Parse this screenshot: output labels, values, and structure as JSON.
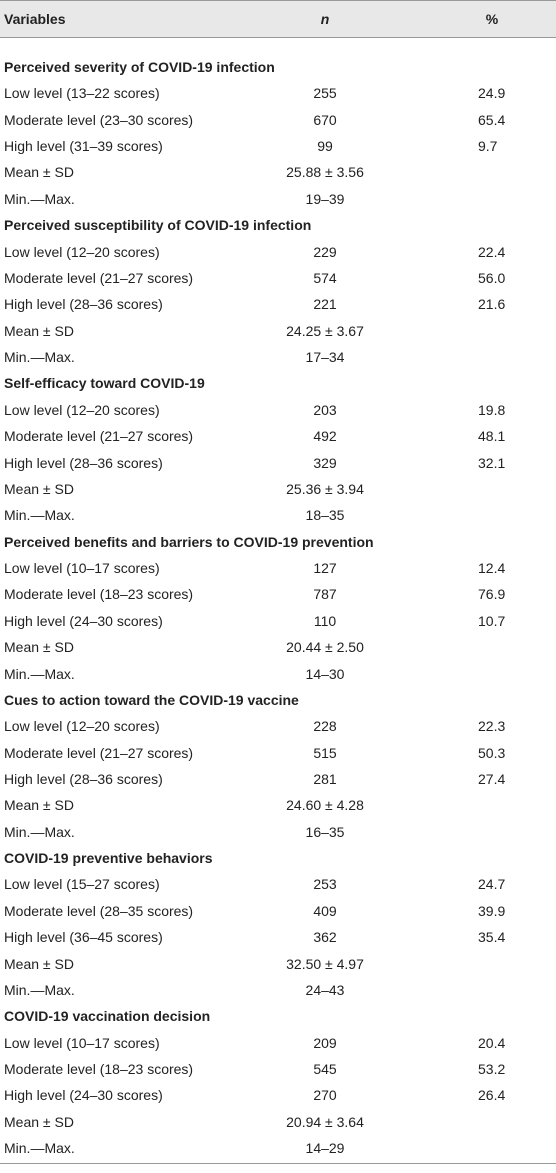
{
  "table": {
    "header": [
      "Variables",
      "n",
      "%"
    ],
    "sections": [
      {
        "title": "Perceived severity of COVID-19 infection",
        "rows": [
          [
            "Low level (13–22 scores)",
            "255",
            "24.9"
          ],
          [
            "Moderate level (23–30 scores)",
            "670",
            "65.4"
          ],
          [
            "High level (31–39 scores)",
            "99",
            "9.7"
          ],
          [
            "Mean ± SD",
            "25.88 ± 3.56"
          ],
          [
            "Min.—Max.",
            "19–39"
          ]
        ]
      },
      {
        "title": "Perceived susceptibility of COVID-19 infection",
        "rows": [
          [
            "Low level (12–20 scores)",
            "229",
            "22.4"
          ],
          [
            "Moderate level (21–27 scores)",
            "574",
            "56.0"
          ],
          [
            "High level (28–36 scores)",
            "221",
            "21.6"
          ],
          [
            "Mean ± SD",
            "24.25 ± 3.67"
          ],
          [
            "Min.—Max.",
            "17–34"
          ]
        ]
      },
      {
        "title": "Self-efficacy toward COVID-19",
        "rows": [
          [
            "Low level (12–20 scores)",
            "203",
            "19.8"
          ],
          [
            "Moderate level (21–27 scores)",
            "492",
            "48.1"
          ],
          [
            "High level (28–36 scores)",
            "329",
            "32.1"
          ],
          [
            "Mean ± SD",
            "25.36 ± 3.94"
          ],
          [
            "Min.—Max.",
            "18–35"
          ]
        ]
      },
      {
        "title": "Perceived benefits and barriers to COVID-19 prevention",
        "rows": [
          [
            "Low level (10–17 scores)",
            "127",
            "12.4"
          ],
          [
            "Moderate level (18–23 scores)",
            "787",
            "76.9"
          ],
          [
            "High level (24–30 scores)",
            "110",
            "10.7"
          ],
          [
            "Mean ± SD",
            "20.44 ± 2.50"
          ],
          [
            "Min.—Max.",
            "14–30"
          ]
        ]
      },
      {
        "title": "Cues to action toward the COVID-19 vaccine",
        "rows": [
          [
            "Low level (12–20 scores)",
            "228",
            "22.3"
          ],
          [
            "Moderate level (21–27 scores)",
            "515",
            "50.3"
          ],
          [
            "High level (28–36 scores)",
            "281",
            "27.4"
          ],
          [
            "Mean ± SD",
            "24.60 ± 4.28"
          ],
          [
            "Min.—Max.",
            "16–35"
          ]
        ]
      },
      {
        "title": "COVID-19 preventive behaviors",
        "rows": [
          [
            "Low level (15–27 scores)",
            "253",
            "24.7"
          ],
          [
            "Moderate level (28–35 scores)",
            "409",
            "39.9"
          ],
          [
            "High level (36–45 scores)",
            "362",
            "35.4"
          ],
          [
            "Mean ± SD",
            "32.50 ± 4.97"
          ],
          [
            "Min.—Max.",
            "24–43"
          ]
        ]
      },
      {
        "title": "COVID-19 vaccination decision",
        "rows": [
          [
            "Low level (10–17 scores)",
            "209",
            "20.4"
          ],
          [
            "Moderate level (18–23 scores)",
            "545",
            "53.2"
          ],
          [
            "High level (24–30 scores)",
            "270",
            "26.4"
          ],
          [
            "Mean ± SD",
            "20.94 ± 3.64"
          ],
          [
            "Min.—Max.",
            "14–29"
          ]
        ]
      }
    ]
  }
}
